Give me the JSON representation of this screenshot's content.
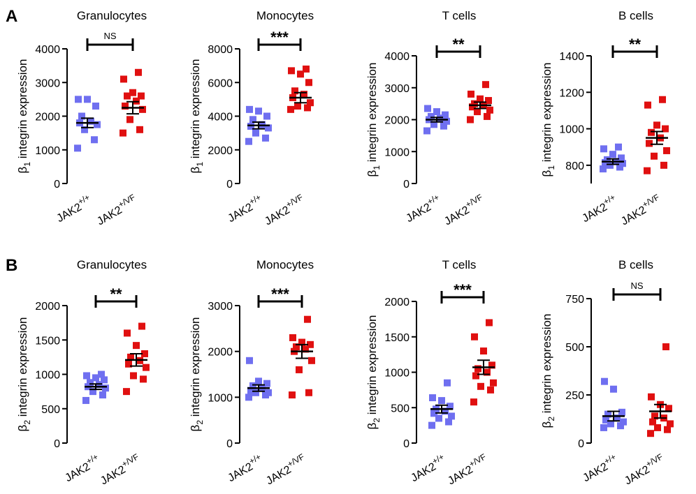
{
  "panels": [
    {
      "letter": "A",
      "symbol": "β",
      "subscript": "1",
      "ylabel_suffix": " integrin expression"
    },
    {
      "letter": "B",
      "symbol": "β",
      "subscript": "2",
      "ylabel_suffix": " integrin expression"
    }
  ],
  "categories": [
    {
      "base": "JAK2",
      "sup": "+/+"
    },
    {
      "base": "JAK2",
      "sup": "+/VF"
    }
  ],
  "colors": {
    "wt": "#6f6ff0",
    "vf": "#e01010",
    "axis": "#000000"
  },
  "chart_data": [
    {
      "type": "scatter",
      "panel": "A",
      "title": "Granulocytes",
      "ylim": [
        0,
        4000
      ],
      "yticks": [
        0,
        1000,
        2000,
        3000,
        4000
      ],
      "significance": "NS",
      "series": [
        {
          "name": "JAK2+/+",
          "values": [
            1050,
            1300,
            1600,
            1750,
            1800,
            1850,
            2000,
            2300,
            2500,
            2500
          ],
          "mean": 1800,
          "sem": 140
        },
        {
          "name": "JAK2+/VF",
          "values": [
            1500,
            1600,
            1900,
            2200,
            2300,
            2450,
            2600,
            2600,
            2700,
            3100,
            3300
          ],
          "mean": 2250,
          "sem": 180
        }
      ]
    },
    {
      "type": "scatter",
      "panel": "A",
      "title": "Monocytes",
      "ylim": [
        0,
        8000
      ],
      "yticks": [
        0,
        2000,
        4000,
        6000,
        8000
      ],
      "significance": "***",
      "series": [
        {
          "name": "JAK2+/+",
          "values": [
            2500,
            2700,
            3000,
            3300,
            3400,
            3500,
            3800,
            4000,
            4300,
            4400
          ],
          "mean": 3450,
          "sem": 200
        },
        {
          "name": "JAK2+/VF",
          "values": [
            4400,
            4500,
            4600,
            4800,
            5100,
            5300,
            5500,
            6000,
            6500,
            6700,
            6800
          ],
          "mean": 5100,
          "sem": 300
        }
      ]
    },
    {
      "type": "scatter",
      "panel": "A",
      "title": "T cells",
      "ylim": [
        0,
        4000
      ],
      "yticks": [
        0,
        1000,
        2000,
        3000,
        4000
      ],
      "significance": "**",
      "series": [
        {
          "name": "JAK2+/+",
          "values": [
            1650,
            1800,
            1850,
            1950,
            2000,
            2050,
            2100,
            2150,
            2250,
            2350
          ],
          "mean": 2000,
          "sem": 70
        },
        {
          "name": "JAK2+/VF",
          "values": [
            2000,
            2100,
            2250,
            2300,
            2400,
            2450,
            2500,
            2600,
            2650,
            2800,
            3100
          ],
          "mean": 2450,
          "sem": 100
        }
      ]
    },
    {
      "type": "scatter",
      "panel": "A",
      "title": "B cells",
      "ylim": [
        700,
        1400
      ],
      "yticks": [
        800,
        1000,
        1200,
        1400
      ],
      "significance": "**",
      "series": [
        {
          "name": "JAK2+/+",
          "values": [
            780,
            790,
            800,
            810,
            815,
            820,
            830,
            840,
            860,
            890,
            900
          ],
          "mean": 820,
          "sem": 15
        },
        {
          "name": "JAK2+/VF",
          "values": [
            770,
            800,
            850,
            880,
            920,
            950,
            980,
            1000,
            1020,
            1130,
            1160
          ],
          "mean": 950,
          "sem": 35
        }
      ]
    },
    {
      "type": "scatter",
      "panel": "B",
      "title": "Granulocytes",
      "ylim": [
        0,
        2000
      ],
      "yticks": [
        0,
        500,
        1000,
        1500,
        2000
      ],
      "significance": "**",
      "series": [
        {
          "name": "JAK2+/+",
          "values": [
            620,
            700,
            750,
            800,
            820,
            850,
            880,
            920,
            950,
            980,
            1000
          ],
          "mean": 820,
          "sem": 40
        },
        {
          "name": "JAK2+/VF",
          "values": [
            750,
            930,
            980,
            1100,
            1150,
            1200,
            1250,
            1300,
            1420,
            1600,
            1700
          ],
          "mean": 1210,
          "sem": 90
        }
      ]
    },
    {
      "type": "scatter",
      "panel": "B",
      "title": "Monocytes",
      "ylim": [
        0,
        3000
      ],
      "yticks": [
        0,
        1000,
        2000,
        3000
      ],
      "significance": "***",
      "series": [
        {
          "name": "JAK2+/+",
          "values": [
            1000,
            1050,
            1100,
            1100,
            1150,
            1200,
            1250,
            1300,
            1350,
            1800
          ],
          "mean": 1200,
          "sem": 70
        },
        {
          "name": "JAK2+/VF",
          "values": [
            1050,
            1100,
            1600,
            1800,
            2000,
            2050,
            2100,
            2150,
            2200,
            2300,
            2700
          ],
          "mean": 2000,
          "sem": 150
        }
      ]
    },
    {
      "type": "scatter",
      "panel": "B",
      "title": "T cells",
      "ylim": [
        0,
        2000
      ],
      "yticks": [
        0,
        500,
        1000,
        1500,
        2000
      ],
      "significance": "***",
      "series": [
        {
          "name": "JAK2+/+",
          "values": [
            250,
            300,
            350,
            380,
            420,
            450,
            480,
            520,
            600,
            640,
            850
          ],
          "mean": 480,
          "sem": 55
        },
        {
          "name": "JAK2+/VF",
          "values": [
            580,
            750,
            800,
            850,
            950,
            1000,
            1050,
            1100,
            1300,
            1500,
            1700
          ],
          "mean": 1070,
          "sem": 100
        }
      ]
    },
    {
      "type": "scatter",
      "panel": "B",
      "title": "B cells",
      "ylim": [
        0,
        750
      ],
      "yticks": [
        0,
        250,
        500,
        750
      ],
      "significance": "NS",
      "series": [
        {
          "name": "JAK2+/+",
          "values": [
            80,
            90,
            100,
            110,
            120,
            130,
            150,
            160,
            280,
            320
          ],
          "mean": 140,
          "sem": 25
        },
        {
          "name": "JAK2+/VF",
          "values": [
            50,
            70,
            80,
            100,
            110,
            130,
            140,
            180,
            200,
            240,
            500
          ],
          "mean": 165,
          "sem": 35
        }
      ]
    }
  ]
}
